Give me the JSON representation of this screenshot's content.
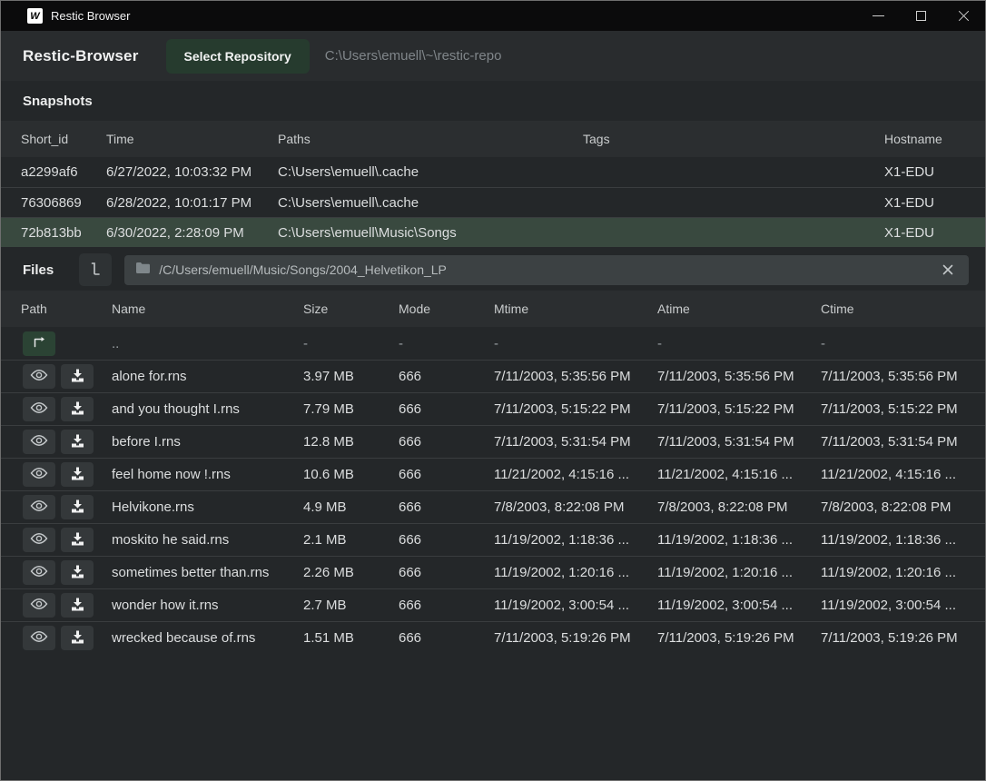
{
  "window": {
    "title": "Restic Browser",
    "icon_letter": "W"
  },
  "header": {
    "app_title": "Restic-Browser",
    "select_repository_button": "Select Repository",
    "repository_path": "C:\\Users\\emuell\\~\\restic-repo"
  },
  "snapshots": {
    "section_title": "Snapshots",
    "columns": [
      "Short_id",
      "Time",
      "Paths",
      "Tags",
      "Hostname"
    ],
    "rows": [
      {
        "short_id": "a2299af6",
        "time": "6/27/2022, 10:03:32 PM",
        "paths": "C:\\Users\\emuell\\.cache",
        "tags": "",
        "hostname": "X1-EDU",
        "selected": false
      },
      {
        "short_id": "76306869",
        "time": "6/28/2022, 10:01:17 PM",
        "paths": "C:\\Users\\emuell\\.cache",
        "tags": "",
        "hostname": "X1-EDU",
        "selected": false
      },
      {
        "short_id": "72b813bb",
        "time": "6/30/2022, 2:28:09 PM",
        "paths": "C:\\Users\\emuell\\Music\\Songs",
        "tags": "",
        "hostname": "X1-EDU",
        "selected": true
      }
    ]
  },
  "files": {
    "section_title": "Files",
    "path_bar": {
      "current_path": "/C/Users/emuell/Music/Songs/2004_Helvetikon_LP"
    },
    "columns": [
      "Path",
      "Name",
      "Size",
      "Mode",
      "Mtime",
      "Atime",
      "Ctime"
    ],
    "parent_row": {
      "name": "..",
      "size": "-",
      "mode": "-",
      "mtime": "-",
      "atime": "-",
      "ctime": "-"
    },
    "rows": [
      {
        "name": "alone for.rns",
        "size": "3.97 MB",
        "mode": "666",
        "mtime": "7/11/2003, 5:35:56 PM",
        "atime": "7/11/2003, 5:35:56 PM",
        "ctime": "7/11/2003, 5:35:56 PM"
      },
      {
        "name": "and you thought I.rns",
        "size": "7.79 MB",
        "mode": "666",
        "mtime": "7/11/2003, 5:15:22 PM",
        "atime": "7/11/2003, 5:15:22 PM",
        "ctime": "7/11/2003, 5:15:22 PM"
      },
      {
        "name": "before I.rns",
        "size": "12.8 MB",
        "mode": "666",
        "mtime": "7/11/2003, 5:31:54 PM",
        "atime": "7/11/2003, 5:31:54 PM",
        "ctime": "7/11/2003, 5:31:54 PM"
      },
      {
        "name": "feel home now !.rns",
        "size": "10.6 MB",
        "mode": "666",
        "mtime": "11/21/2002, 4:15:16 ...",
        "atime": "11/21/2002, 4:15:16 ...",
        "ctime": "11/21/2002, 4:15:16 ..."
      },
      {
        "name": "Helvikone.rns",
        "size": "4.9 MB",
        "mode": "666",
        "mtime": "7/8/2003, 8:22:08 PM",
        "atime": "7/8/2003, 8:22:08 PM",
        "ctime": "7/8/2003, 8:22:08 PM"
      },
      {
        "name": "moskito he said.rns",
        "size": "2.1 MB",
        "mode": "666",
        "mtime": "11/19/2002, 1:18:36 ...",
        "atime": "11/19/2002, 1:18:36 ...",
        "ctime": "11/19/2002, 1:18:36 ..."
      },
      {
        "name": "sometimes better than.rns",
        "size": "2.26 MB",
        "mode": "666",
        "mtime": "11/19/2002, 1:20:16 ...",
        "atime": "11/19/2002, 1:20:16 ...",
        "ctime": "11/19/2002, 1:20:16 ..."
      },
      {
        "name": "wonder how it.rns",
        "size": "2.7 MB",
        "mode": "666",
        "mtime": "11/19/2002, 3:00:54 ...",
        "atime": "11/19/2002, 3:00:54 ...",
        "ctime": "11/19/2002, 3:00:54 ..."
      },
      {
        "name": "wrecked because of.rns",
        "size": "1.51 MB",
        "mode": "666",
        "mtime": "7/11/2003, 5:19:26 PM",
        "atime": "7/11/2003, 5:19:26 PM",
        "ctime": "7/11/2003, 5:19:26 PM"
      }
    ]
  }
}
